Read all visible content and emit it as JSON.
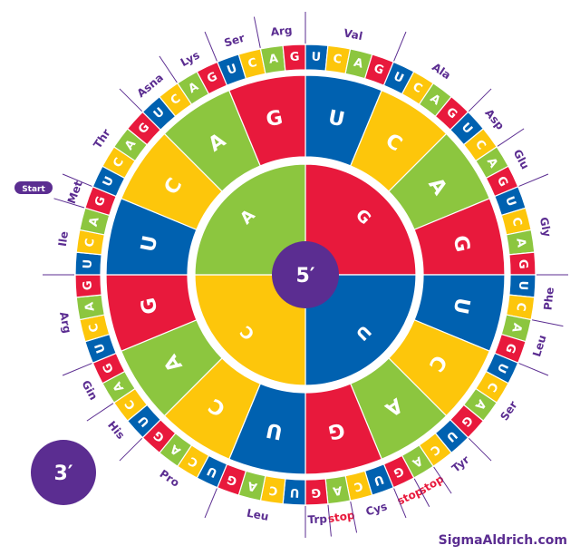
{
  "colors": {
    "G": "#e8193c",
    "U": "#0061b0",
    "C": "#fdc60b",
    "A": "#8cc63f",
    "ring_white": "#ffffff",
    "label": "#5b2d91",
    "stop_label": "#e8193c",
    "center": "#5b2d91"
  },
  "center_label": "5′",
  "end_label": "3′",
  "start_badge": "Start",
  "brand": "SigmaAldrich.com",
  "inner_ring": [
    "G",
    "U",
    "C",
    "A"
  ],
  "middle_ring": [
    "U",
    "C",
    "A",
    "G",
    "U",
    "C",
    "A",
    "G",
    "U",
    "C",
    "A",
    "G",
    "U",
    "C",
    "A",
    "G"
  ],
  "outer_ring": [
    "U",
    "C",
    "A",
    "G",
    "U",
    "C",
    "A",
    "G",
    "U",
    "C",
    "A",
    "G",
    "U",
    "C",
    "A",
    "G",
    "U",
    "C",
    "A",
    "G",
    "U",
    "C",
    "A",
    "G",
    "U",
    "C",
    "A",
    "G",
    "U",
    "C",
    "A",
    "G",
    "U",
    "C",
    "A",
    "G",
    "U",
    "C",
    "A",
    "G",
    "U",
    "C",
    "A",
    "G",
    "U",
    "C",
    "A",
    "G",
    "U",
    "C",
    "A",
    "G",
    "U",
    "C",
    "A",
    "G",
    "U",
    "C",
    "A",
    "G",
    "U",
    "C",
    "A",
    "G"
  ],
  "amino_acids": [
    {
      "label": "Val",
      "from": 0,
      "to": 4,
      "stop": false
    },
    {
      "label": "Ala",
      "from": 4,
      "to": 8,
      "stop": false
    },
    {
      "label": "Asp",
      "from": 8,
      "to": 10,
      "stop": false
    },
    {
      "label": "Glu",
      "from": 10,
      "to": 12,
      "stop": false
    },
    {
      "label": "Gly",
      "from": 12,
      "to": 16,
      "stop": false
    },
    {
      "label": "Phe",
      "from": 16,
      "to": 18,
      "stop": false
    },
    {
      "label": "Leu",
      "from": 18,
      "to": 20,
      "stop": false
    },
    {
      "label": "Ser",
      "from": 20,
      "to": 24,
      "stop": false
    },
    {
      "label": "Tyr",
      "from": 24,
      "to": 26,
      "stop": false
    },
    {
      "label": "stop",
      "from": 26,
      "to": 27,
      "stop": true
    },
    {
      "label": "stop",
      "from": 27,
      "to": 28,
      "stop": true
    },
    {
      "label": "Cys",
      "from": 28,
      "to": 30,
      "stop": false
    },
    {
      "label": "stop",
      "from": 30,
      "to": 31,
      "stop": true
    },
    {
      "label": "Trp",
      "from": 31,
      "to": 32,
      "stop": false
    },
    {
      "label": "Leu",
      "from": 32,
      "to": 36,
      "stop": false
    },
    {
      "label": "Pro",
      "from": 36,
      "to": 40,
      "stop": false
    },
    {
      "label": "His",
      "from": 40,
      "to": 42,
      "stop": false
    },
    {
      "label": "Gin",
      "from": 42,
      "to": 44,
      "stop": false
    },
    {
      "label": "Arg",
      "from": 44,
      "to": 48,
      "stop": false
    },
    {
      "label": "Ile",
      "from": 48,
      "to": 51,
      "stop": false
    },
    {
      "label": "Met",
      "from": 51,
      "to": 52,
      "stop": false
    },
    {
      "label": "Thr",
      "from": 52,
      "to": 56,
      "stop": false
    },
    {
      "label": "Asna",
      "from": 56,
      "to": 58,
      "stop": false
    },
    {
      "label": "Lys",
      "from": 58,
      "to": 60,
      "stop": false
    },
    {
      "label": "Ser",
      "from": 60,
      "to": 62,
      "stop": false
    },
    {
      "label": "Arg",
      "from": 62,
      "to": 64,
      "stop": false
    }
  ]
}
